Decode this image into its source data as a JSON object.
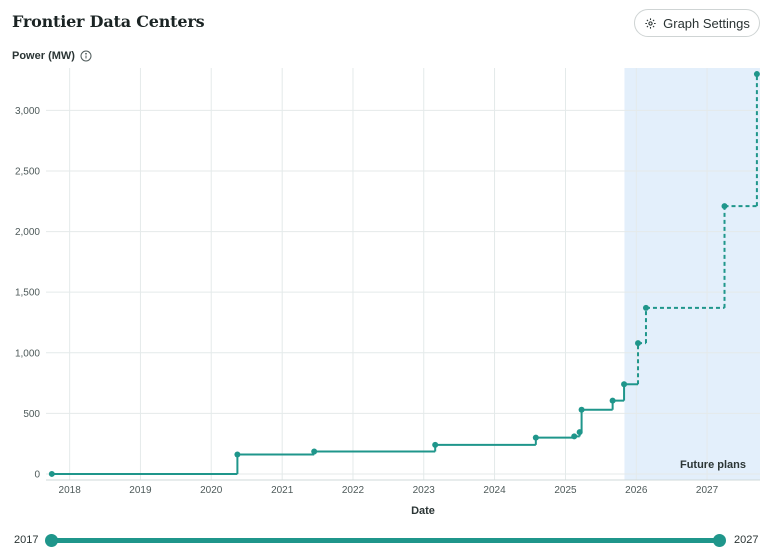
{
  "header": {
    "title": "Frontier Data Centers",
    "settings_label": "Graph Settings",
    "settings_icon": "gear-icon",
    "info_icon": "info-icon"
  },
  "chart_data": {
    "type": "line",
    "step": true,
    "ylabel": "Power (MW)",
    "xlabel": "Date",
    "ylim": [
      -50,
      3350
    ],
    "xlim": [
      "2017-09-01",
      "2027-10-01"
    ],
    "y_ticks": [
      0,
      500,
      1000,
      1500,
      2000,
      2500,
      3000
    ],
    "y_tick_labels": [
      "0",
      "500",
      "1,000",
      "1,500",
      "2,000",
      "2,500",
      "3,000"
    ],
    "x_ticks": [
      "2018-01-01",
      "2019-01-01",
      "2020-01-01",
      "2021-01-01",
      "2022-01-01",
      "2023-01-01",
      "2024-01-01",
      "2025-01-01",
      "2026-01-01",
      "2027-01-01"
    ],
    "x_tick_labels": [
      "2018",
      "2019",
      "2020",
      "2021",
      "2022",
      "2023",
      "2024",
      "2025",
      "2026",
      "2027"
    ],
    "grid": true,
    "future_start": "2025-11-01",
    "future_label": "Future plans",
    "line_color": "#1f968b",
    "future_fill": "#e3effb",
    "points": [
      {
        "x": "2017-10-01",
        "y": 0
      },
      {
        "x": "2020-05-15",
        "y": 160
      },
      {
        "x": "2021-06-15",
        "y": 185
      },
      {
        "x": "2023-03-01",
        "y": 240
      },
      {
        "x": "2024-08-01",
        "y": 300
      },
      {
        "x": "2025-02-15",
        "y": 310
      },
      {
        "x": "2025-03-15",
        "y": 345
      },
      {
        "x": "2025-03-25",
        "y": 530
      },
      {
        "x": "2025-09-01",
        "y": 605
      },
      {
        "x": "2025-10-30",
        "y": 740
      },
      {
        "x": "2026-01-10",
        "y": 1080
      },
      {
        "x": "2026-02-20",
        "y": 1370
      },
      {
        "x": "2027-04-01",
        "y": 2210
      },
      {
        "x": "2027-09-15",
        "y": 3300
      }
    ]
  },
  "range_slider": {
    "min_label": "2017",
    "max_label": "2027"
  }
}
